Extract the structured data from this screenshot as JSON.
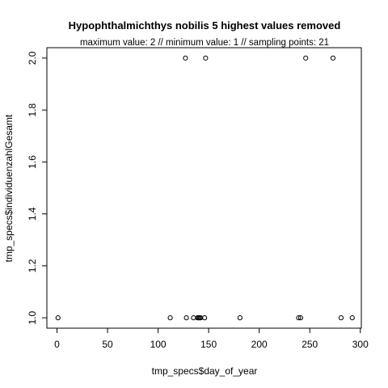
{
  "chart_data": {
    "type": "scatter",
    "title": "Hypophthalmichthys nobilis  5 highest values removed",
    "subtitle": "maximum value: 2  //  minimum value: 1  // sampling points: 21",
    "xlabel": "tmp_specs$day_of_year",
    "ylabel": "tmp_specs$individuenzahlGesamt",
    "xlim": [
      -10,
      301
    ],
    "ylim": [
      0.96,
      2.04
    ],
    "x_ticks": [
      0,
      50,
      100,
      150,
      200,
      250,
      300
    ],
    "y_ticks": [
      1.0,
      1.2,
      1.4,
      1.6,
      1.8,
      2.0
    ],
    "y_tick_labels": [
      "1.0",
      "1.2",
      "1.4",
      "1.6",
      "1.8",
      "2.0"
    ],
    "grid": false,
    "points": [
      {
        "x": 1,
        "y": 1
      },
      {
        "x": 112,
        "y": 1
      },
      {
        "x": 128,
        "y": 1
      },
      {
        "x": 135,
        "y": 1
      },
      {
        "x": 139,
        "y": 1
      },
      {
        "x": 140,
        "y": 1
      },
      {
        "x": 141,
        "y": 1
      },
      {
        "x": 142,
        "y": 1
      },
      {
        "x": 146,
        "y": 1
      },
      {
        "x": 181,
        "y": 1
      },
      {
        "x": 239,
        "y": 1
      },
      {
        "x": 241,
        "y": 1
      },
      {
        "x": 281,
        "y": 1
      },
      {
        "x": 292,
        "y": 1
      },
      {
        "x": 127,
        "y": 2
      },
      {
        "x": 147,
        "y": 2
      },
      {
        "x": 246,
        "y": 2
      },
      {
        "x": 273,
        "y": 2
      }
    ]
  }
}
